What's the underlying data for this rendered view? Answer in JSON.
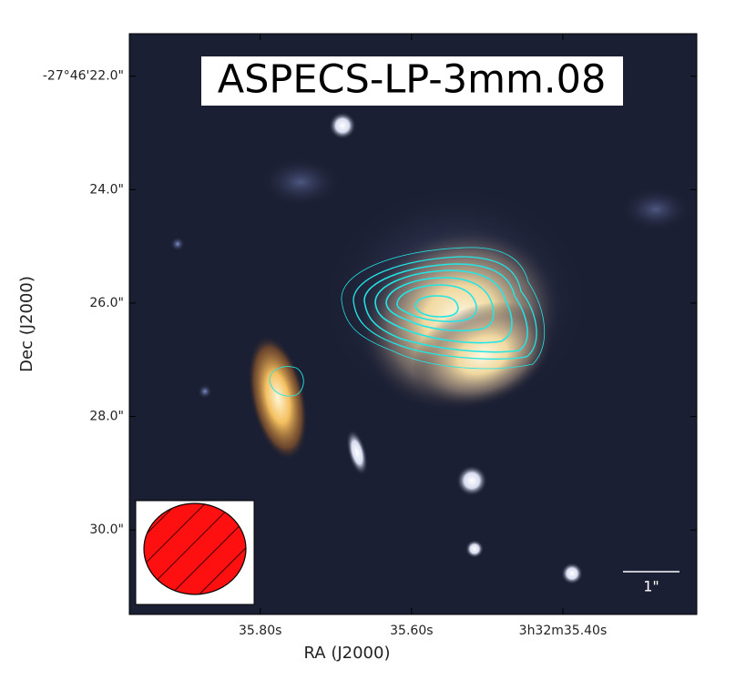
{
  "chart_data": {
    "type": "image",
    "title": "ASPECS-LP-3mm.08",
    "xlabel": "RA (J2000)",
    "ylabel": "Dec (J2000)",
    "xlim": [
      35.973,
      35.223
    ],
    "ylim": [
      31.49,
      21.25
    ],
    "xticks": [
      {
        "value": 35.8,
        "label": "35.80s"
      },
      {
        "value": 35.6,
        "label": "35.60s"
      },
      {
        "value": 35.4,
        "label": "3h32m35.40s"
      }
    ],
    "yticks": [
      {
        "value": 22,
        "label": "-27°46'22.0\""
      },
      {
        "value": 24,
        "label": "24.0\""
      },
      {
        "value": 26,
        "label": "26.0\""
      },
      {
        "value": 28,
        "label": "28.0\""
      },
      {
        "value": 30,
        "label": "30.0\""
      }
    ],
    "scale_bar_label": "1\""
  }
}
